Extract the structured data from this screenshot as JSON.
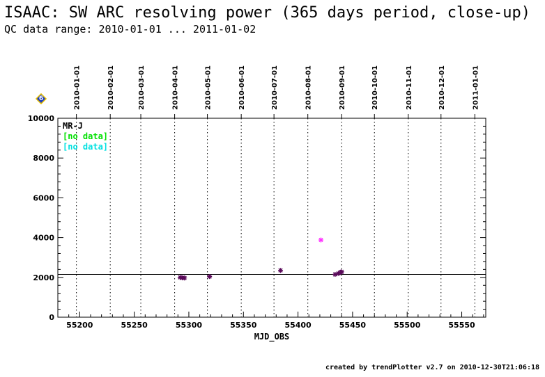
{
  "header": {
    "title": "ISAAC: SW ARC resolving power (365 days period, close-up)",
    "subtitle": "QC data range: 2010-01-01 ... 2011-01-02"
  },
  "footer": {
    "text": "created by trendPlotter v2.7 on 2010-12-30T21:06:18"
  },
  "badge": {
    "label": "6",
    "fill": "#1f3fbf",
    "border": "#e8c000"
  },
  "chart_data": {
    "type": "scatter",
    "title": "",
    "xlabel": "MJD_OBS",
    "ylabel": "",
    "xlim": [
      55180,
      55572
    ],
    "ylim": [
      0,
      10000
    ],
    "x_ticks": [
      55200,
      55250,
      55300,
      55350,
      55400,
      55450,
      55500,
      55550
    ],
    "y_ticks": [
      0,
      2000,
      4000,
      6000,
      8000,
      10000
    ],
    "grid": "vertical dotted lines at month starts",
    "top_axis_dates": [
      {
        "label": "2010-01-01",
        "mjd": 55197
      },
      {
        "label": "2010-02-01",
        "mjd": 55228
      },
      {
        "label": "2010-03-01",
        "mjd": 55256
      },
      {
        "label": "2010-04-01",
        "mjd": 55287
      },
      {
        "label": "2010-05-01",
        "mjd": 55317
      },
      {
        "label": "2010-06-01",
        "mjd": 55348
      },
      {
        "label": "2010-07-01",
        "mjd": 55378
      },
      {
        "label": "2010-08-01",
        "mjd": 55409
      },
      {
        "label": "2010-09-01",
        "mjd": 55440
      },
      {
        "label": "2010-10-01",
        "mjd": 55470
      },
      {
        "label": "2010-11-01",
        "mjd": 55501
      },
      {
        "label": "2010-12-01",
        "mjd": 55531
      },
      {
        "label": "2011-01-01",
        "mjd": 55562
      }
    ],
    "reference_line": 2150,
    "legend": [
      {
        "text": "MR-J",
        "color": "#000000"
      },
      {
        "text": "[no data]",
        "color": "#00e000"
      },
      {
        "text": "[no data]",
        "color": "#00e0e0"
      }
    ],
    "legend_position": "top-left",
    "series": [
      {
        "color": "#5a0a5a",
        "marker": "asterisk",
        "points": [
          {
            "x": 55292,
            "y": 2000
          },
          {
            "x": 55294,
            "y": 1980
          },
          {
            "x": 55296,
            "y": 1970
          },
          {
            "x": 55319,
            "y": 2040
          },
          {
            "x": 55384,
            "y": 2350
          },
          {
            "x": 55434,
            "y": 2150
          },
          {
            "x": 55437,
            "y": 2200
          },
          {
            "x": 55439,
            "y": 2260
          },
          {
            "x": 55440,
            "y": 2280
          }
        ]
      },
      {
        "color": "#ff33ff",
        "marker": "asterisk",
        "points": [
          {
            "x": 55421,
            "y": 3880
          }
        ]
      }
    ]
  }
}
